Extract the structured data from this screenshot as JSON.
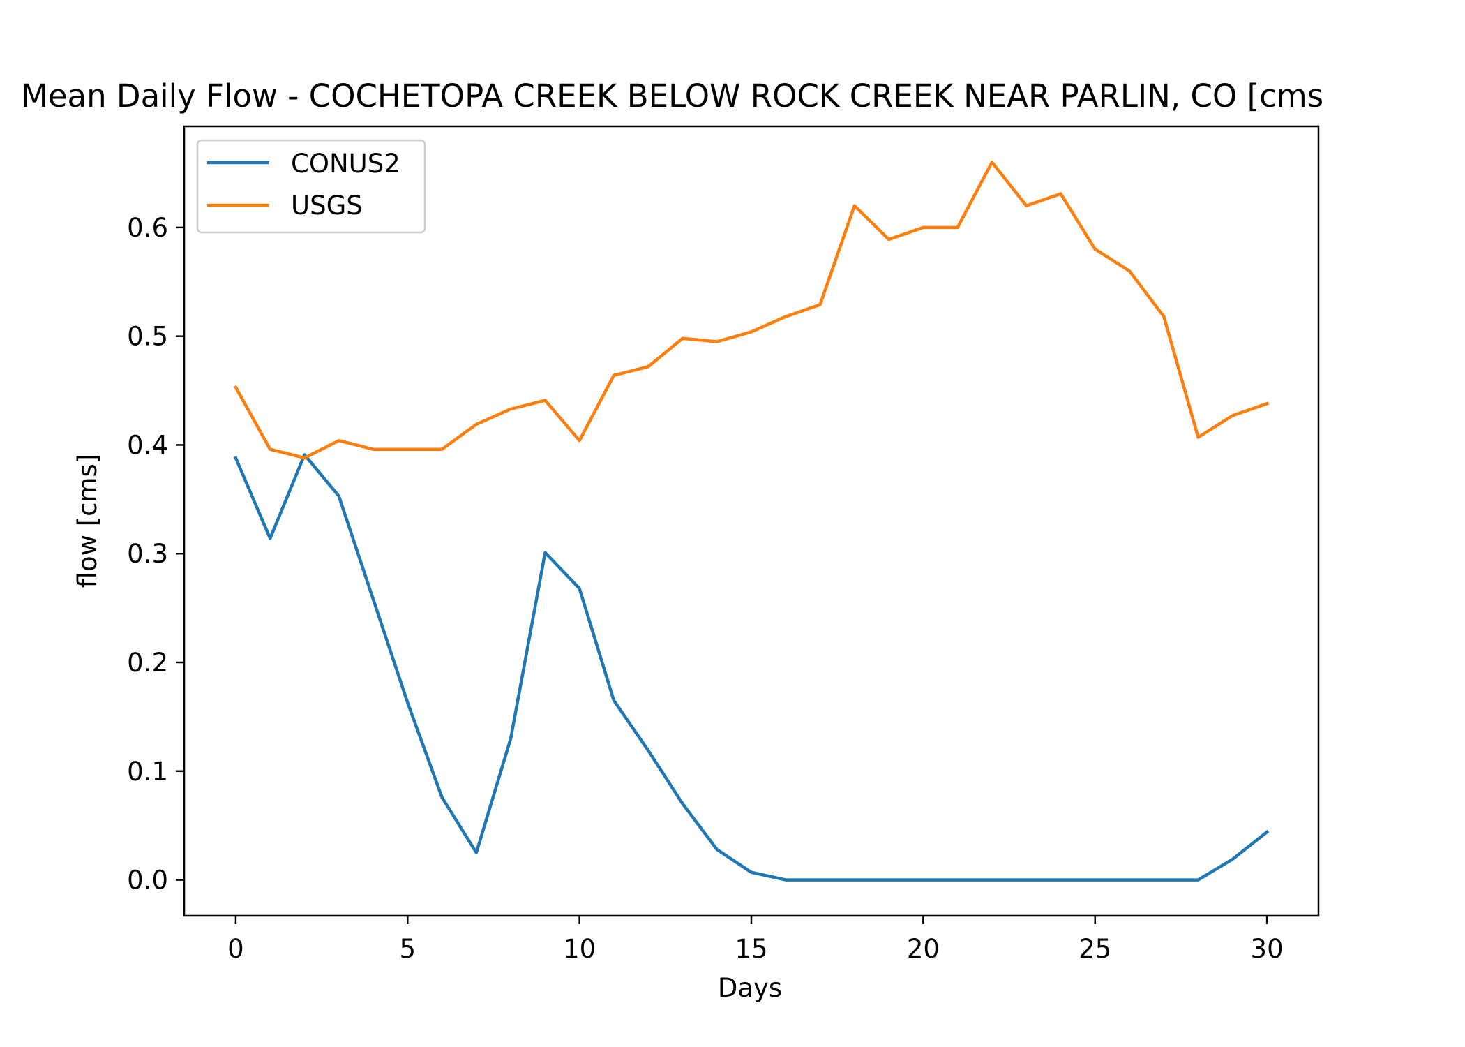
{
  "chart_data": {
    "type": "line",
    "title": "Mean Daily Flow - COCHETOPA CREEK BELOW ROCK CREEK NEAR PARLIN, CO [cms",
    "xlabel": "Days",
    "ylabel": "flow [cms]",
    "xlim": [
      -1.5,
      31.5
    ],
    "ylim": [
      -0.033,
      0.693
    ],
    "xticks": [
      0,
      5,
      10,
      15,
      20,
      25,
      30
    ],
    "yticks": [
      0.0,
      0.1,
      0.2,
      0.3,
      0.4,
      0.5,
      0.6
    ],
    "xtick_labels": [
      "0",
      "5",
      "10",
      "15",
      "20",
      "25",
      "30"
    ],
    "ytick_labels": [
      "0.0",
      "0.1",
      "0.2",
      "0.3",
      "0.4",
      "0.5",
      "0.6"
    ],
    "grid": false,
    "legend_position": "upper-left",
    "x": [
      0,
      1,
      2,
      3,
      4,
      5,
      6,
      7,
      8,
      9,
      10,
      11,
      12,
      13,
      14,
      15,
      16,
      17,
      18,
      19,
      20,
      21,
      22,
      23,
      24,
      25,
      26,
      27,
      28,
      29,
      30
    ],
    "series": [
      {
        "name": "CONUS2",
        "color": "#1f77b4",
        "values": [
          0.388,
          0.314,
          0.391,
          0.353,
          0.258,
          0.163,
          0.076,
          0.025,
          0.13,
          0.301,
          0.268,
          0.165,
          0.119,
          0.07,
          0.028,
          0.007,
          0.0,
          0.0,
          0.0,
          0.0,
          0.0,
          0.0,
          0.0,
          0.0,
          0.0,
          0.0,
          0.0,
          0.0,
          0.0,
          0.019,
          0.044
        ]
      },
      {
        "name": "USGS",
        "color": "#ff7f0e",
        "values": [
          0.453,
          0.396,
          0.388,
          0.404,
          0.396,
          0.396,
          0.396,
          0.419,
          0.433,
          0.441,
          0.404,
          0.464,
          0.472,
          0.498,
          0.495,
          0.504,
          0.518,
          0.529,
          0.62,
          0.589,
          0.6,
          0.6,
          0.66,
          0.62,
          0.631,
          0.58,
          0.56,
          0.518,
          0.407,
          0.427,
          0.438
        ]
      }
    ]
  }
}
